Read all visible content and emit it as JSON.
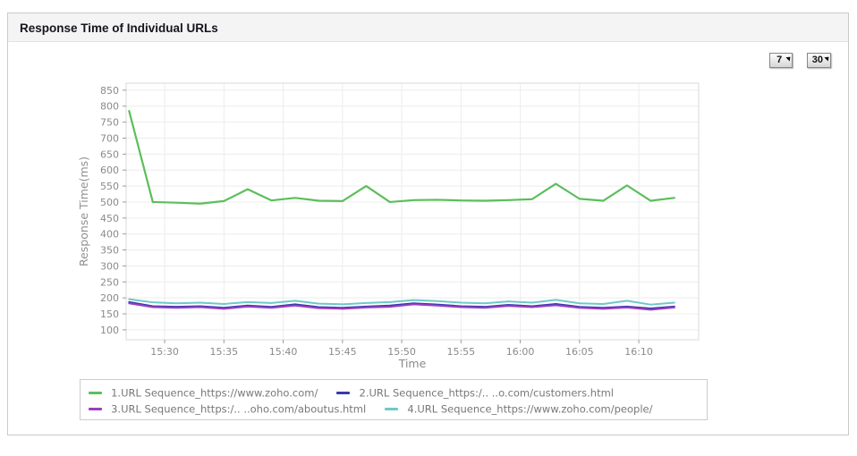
{
  "header": {
    "title": "Response Time of Individual URLs"
  },
  "toolbar": {
    "range_7_label": "7",
    "range_30_label": "30"
  },
  "chart_data": {
    "type": "line",
    "title": "Response Time of Individual URLs",
    "xlabel": "Time",
    "ylabel": "Response Time(ms)",
    "x_unit": "minutes after 15:00",
    "grid": true,
    "legend_position": "bottom",
    "xlim": [
      26.75,
      75.05
    ],
    "ylim": [
      69,
      872
    ],
    "y_ticks": [
      100,
      150,
      200,
      250,
      300,
      350,
      400,
      450,
      500,
      550,
      600,
      650,
      700,
      750,
      800,
      850
    ],
    "x_ticks": [
      {
        "m": 30,
        "label": "15:30"
      },
      {
        "m": 35,
        "label": "15:35"
      },
      {
        "m": 40,
        "label": "15:40"
      },
      {
        "m": 45,
        "label": "15:45"
      },
      {
        "m": 50,
        "label": "15:50"
      },
      {
        "m": 55,
        "label": "15:55"
      },
      {
        "m": 60,
        "label": "16:00"
      },
      {
        "m": 65,
        "label": "16:05"
      },
      {
        "m": 70,
        "label": "16:10"
      }
    ],
    "x": [
      27,
      29,
      31,
      33,
      35,
      37,
      39,
      41,
      43,
      45,
      47,
      49,
      51,
      53,
      55,
      57,
      59,
      61,
      63,
      65,
      67,
      69,
      71,
      73
    ],
    "series": [
      {
        "name": "1.URL Sequence_https://www.zoho.com/",
        "color": "#5cbe5c",
        "values": [
          785,
          500,
          498,
          495,
          503,
          540,
          505,
          513,
          504,
          503,
          550,
          500,
          506,
          507,
          505,
          504,
          506,
          509,
          557,
          510,
          504,
          552,
          504,
          513
        ]
      },
      {
        "name": "2.URL Sequence_https:/.. ..o.com/customers.html",
        "color": "#3838b0",
        "values": [
          187,
          174,
          172,
          174,
          169,
          176,
          172,
          180,
          171,
          169,
          173,
          176,
          183,
          179,
          174,
          172,
          178,
          174,
          181,
          172,
          169,
          173,
          167,
          173
        ]
      },
      {
        "name": "3.URL Sequence_https:/.. ..oho.com/aboutus.html",
        "color": "#9c3ec1",
        "values": [
          183,
          171,
          169,
          171,
          166,
          173,
          169,
          176,
          168,
          166,
          170,
          172,
          180,
          176,
          171,
          169,
          175,
          171,
          177,
          169,
          166,
          170,
          163,
          170
        ]
      },
      {
        "name": "4.URL Sequence_https://www.zoho.com/people/",
        "color": "#6ec8ca",
        "values": [
          196,
          186,
          183,
          185,
          181,
          187,
          184,
          191,
          182,
          180,
          184,
          187,
          193,
          190,
          185,
          183,
          189,
          185,
          194,
          183,
          181,
          191,
          179,
          185
        ]
      }
    ]
  }
}
